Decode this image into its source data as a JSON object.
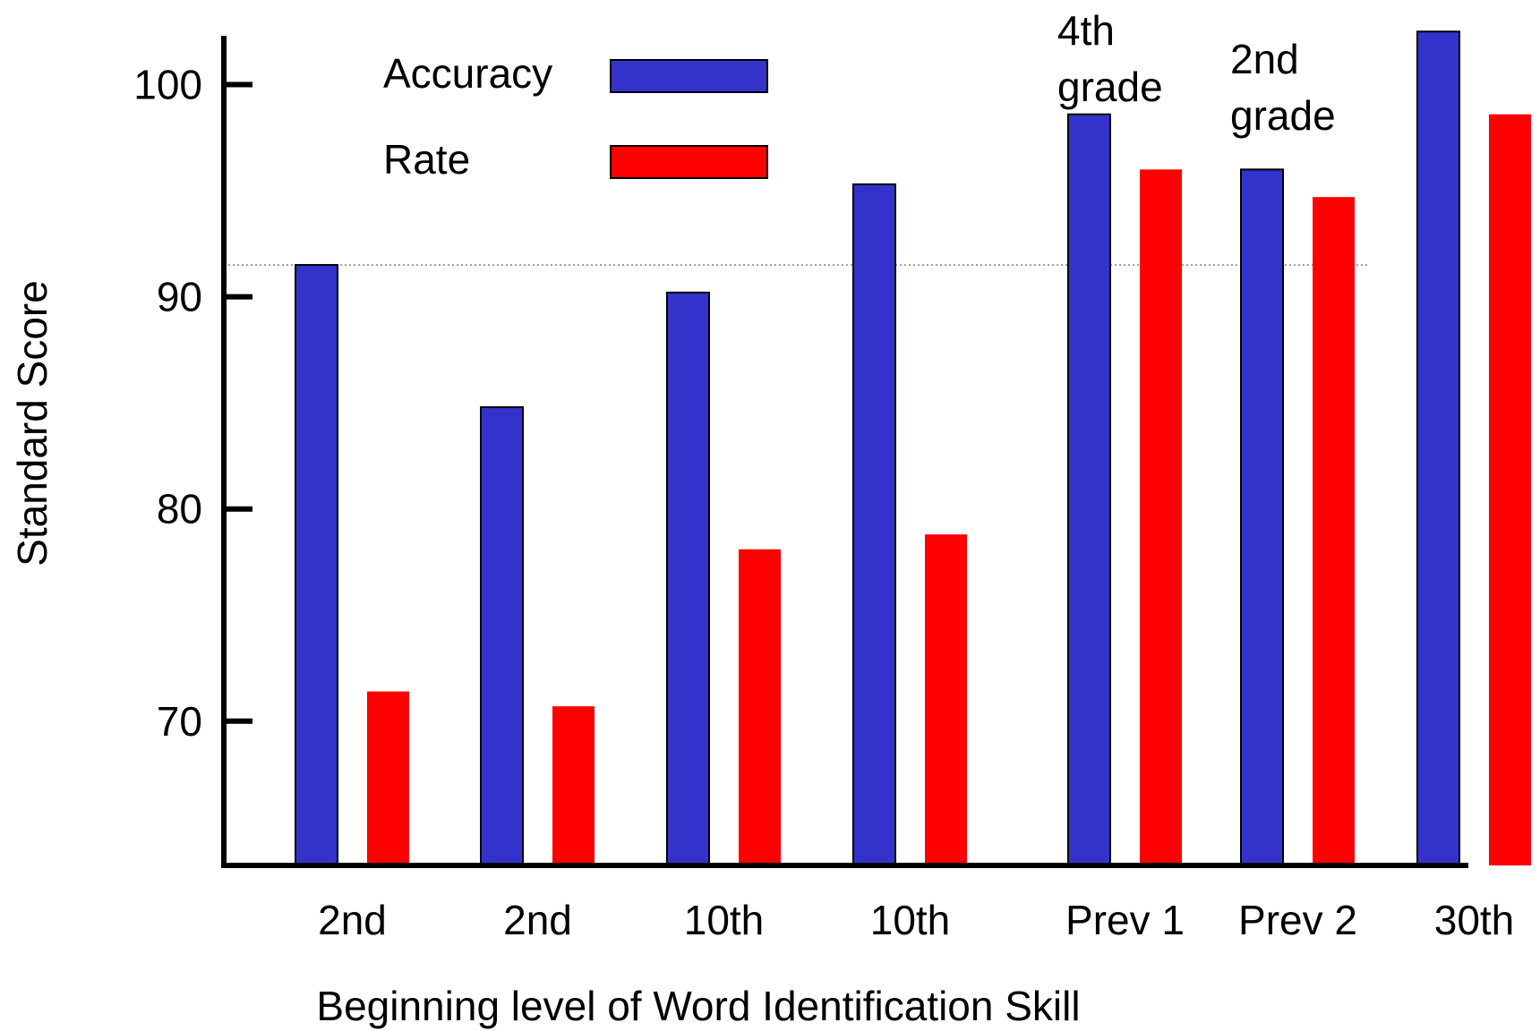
{
  "chart_data": {
    "type": "bar",
    "title": "",
    "xlabel": "Beginning level of Word Identification Skill",
    "ylabel": "Standard Score",
    "ylim": [
      63.2,
      102.3
    ],
    "yticks": [
      70,
      80,
      90,
      100
    ],
    "reference_line": 91.5,
    "grid": false,
    "legend_position": "top-left",
    "categories": [
      "2nd",
      "2nd",
      "10th",
      "10th",
      "Prev 1",
      "Prev 2",
      "30th"
    ],
    "series": [
      {
        "name": "Accuracy",
        "color": "#3333cc",
        "values": [
          91.5,
          84.8,
          90.2,
          95.3,
          98.6,
          96.0,
          102.5
        ]
      },
      {
        "name": "Rate",
        "color": "#ff0000",
        "values": [
          71.4,
          70.7,
          78.1,
          78.8,
          96.0,
          94.7,
          98.6
        ]
      }
    ],
    "annotations": [
      {
        "lines": [
          "4th",
          "grade"
        ],
        "category": "Prev 1"
      },
      {
        "lines": [
          "2nd",
          "grade"
        ],
        "category": "Prev 2"
      }
    ]
  }
}
